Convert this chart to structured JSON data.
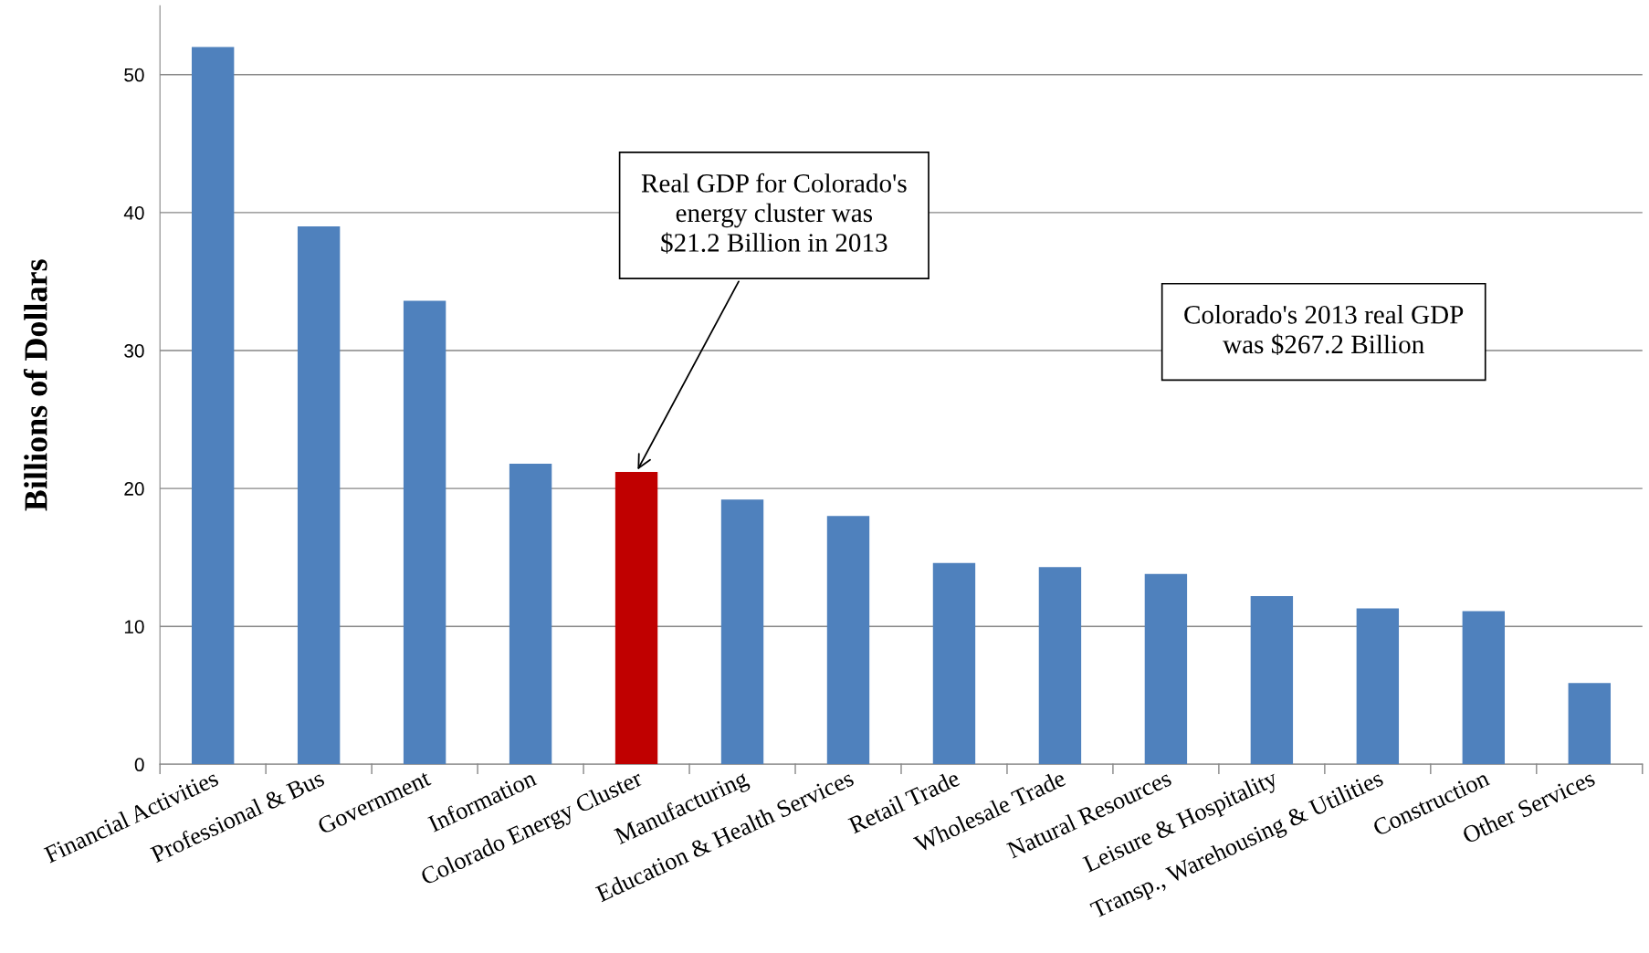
{
  "chart_data": {
    "type": "bar",
    "ylabel": "Billions of Dollars",
    "categories": [
      "Financial Activities",
      "Professional & Bus",
      "Government",
      "Information",
      "Colorado Energy Cluster",
      "Manufacturing",
      "Education & Health Services",
      "Retail Trade",
      "Wholesale Trade",
      "Natural Resources",
      "Leisure & Hospitality",
      "Transp., Warehousing & Utilities",
      "Construction",
      "Other Services"
    ],
    "values": [
      52.0,
      39.0,
      33.6,
      21.8,
      21.2,
      19.2,
      18.0,
      14.6,
      14.3,
      13.8,
      12.2,
      11.3,
      11.1,
      5.9
    ],
    "colors": [
      "#4f81bd",
      "#4f81bd",
      "#4f81bd",
      "#4f81bd",
      "#c00000",
      "#4f81bd",
      "#4f81bd",
      "#4f81bd",
      "#4f81bd",
      "#4f81bd",
      "#4f81bd",
      "#4f81bd",
      "#4f81bd",
      "#4f81bd"
    ],
    "ylim": [
      0,
      55
    ],
    "yticks": [
      0,
      10,
      20,
      30,
      40,
      50
    ],
    "grid": "y",
    "legend": false,
    "annotations": [
      {
        "text": "Real GDP for Colorado's\nenergy cluster was\n$21.2 Billion in 2013",
        "x": "Colorado Energy Cluster",
        "y": 21.2
      },
      "Colorado's 2013 real GDP\nwas $267.2 Billion"
    ]
  }
}
